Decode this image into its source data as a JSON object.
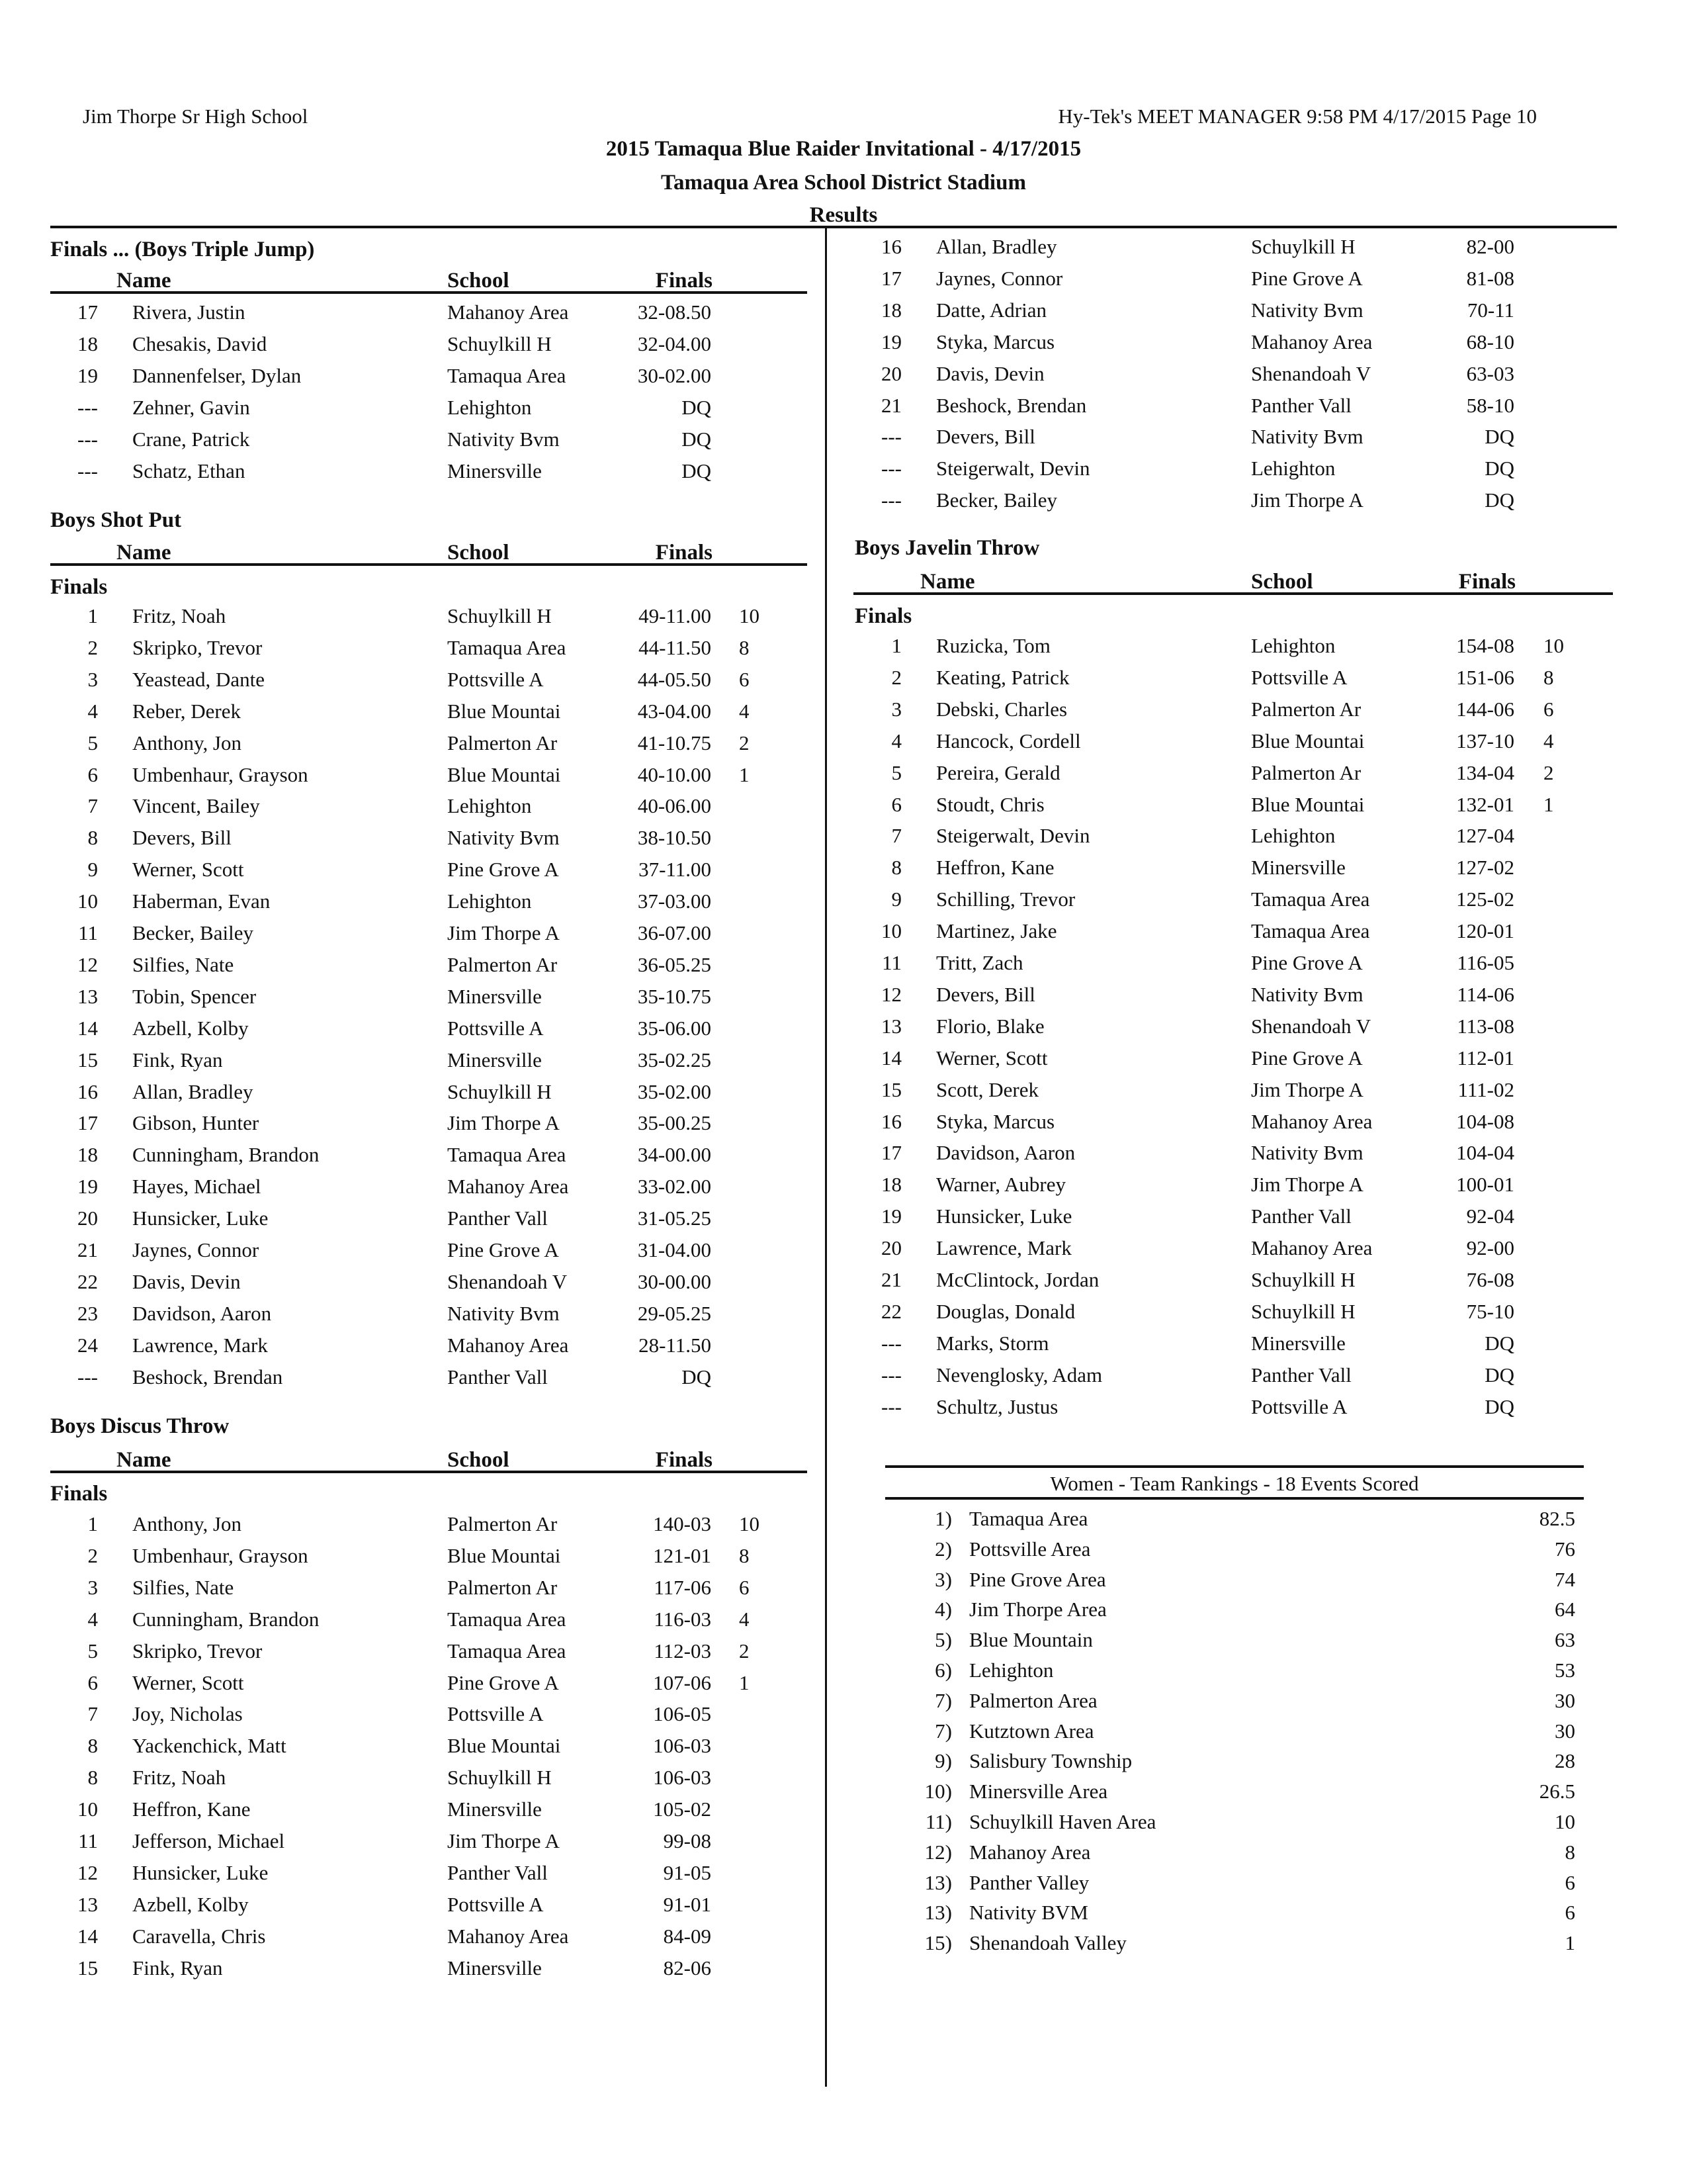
{
  "page_header": {
    "school": "Jim Thorpe Sr High School",
    "software": "Hy-Tek's MEET MANAGER  9:58 PM  4/17/2015  Page 10",
    "meet_title": "2015 Tamaqua Blue Raider Invitational - 4/17/2015",
    "venue": "Tamaqua Area School District Stadium",
    "results_label": "Results"
  },
  "columns": {
    "name": "Name",
    "school": "School",
    "finals": "Finals"
  },
  "triple_jump": {
    "title": "Finals ...  (Boys Triple Jump)",
    "entries": [
      {
        "place": "17",
        "name": "Rivera, Justin",
        "school": "Mahanoy Area",
        "mark": "32-08.50"
      },
      {
        "place": "18",
        "name": "Chesakis, David",
        "school": "Schuylkill H",
        "mark": "32-04.00"
      },
      {
        "place": "19",
        "name": "Dannenfelser, Dylan",
        "school": "Tamaqua Area",
        "mark": "30-02.00"
      },
      {
        "place": "---",
        "name": "Zehner, Gavin",
        "school": "Lehighton",
        "mark": "DQ"
      },
      {
        "place": "---",
        "name": "Crane, Patrick",
        "school": "Nativity Bvm",
        "mark": "DQ"
      },
      {
        "place": "---",
        "name": "Schatz, Ethan",
        "school": "Minersville",
        "mark": "DQ"
      }
    ]
  },
  "shot_put": {
    "title": "Boys Shot Put",
    "round": "Finals",
    "entries": [
      {
        "place": "1",
        "name": "Fritz, Noah",
        "school": "Schuylkill H",
        "mark": "49-11.00",
        "points": "10"
      },
      {
        "place": "2",
        "name": "Skripko, Trevor",
        "school": "Tamaqua Area",
        "mark": "44-11.50",
        "points": "8"
      },
      {
        "place": "3",
        "name": "Yeastead, Dante",
        "school": "Pottsville A",
        "mark": "44-05.50",
        "points": "6"
      },
      {
        "place": "4",
        "name": "Reber, Derek",
        "school": "Blue Mountai",
        "mark": "43-04.00",
        "points": "4"
      },
      {
        "place": "5",
        "name": "Anthony, Jon",
        "school": "Palmerton Ar",
        "mark": "41-10.75",
        "points": "2"
      },
      {
        "place": "6",
        "name": "Umbenhaur, Grayson",
        "school": "Blue Mountai",
        "mark": "40-10.00",
        "points": "1"
      },
      {
        "place": "7",
        "name": "Vincent, Bailey",
        "school": "Lehighton",
        "mark": "40-06.00"
      },
      {
        "place": "8",
        "name": "Devers, Bill",
        "school": "Nativity Bvm",
        "mark": "38-10.50"
      },
      {
        "place": "9",
        "name": "Werner, Scott",
        "school": "Pine Grove A",
        "mark": "37-11.00"
      },
      {
        "place": "10",
        "name": "Haberman, Evan",
        "school": "Lehighton",
        "mark": "37-03.00"
      },
      {
        "place": "11",
        "name": "Becker, Bailey",
        "school": "Jim Thorpe A",
        "mark": "36-07.00"
      },
      {
        "place": "12",
        "name": "Silfies, Nate",
        "school": "Palmerton Ar",
        "mark": "36-05.25"
      },
      {
        "place": "13",
        "name": "Tobin, Spencer",
        "school": "Minersville",
        "mark": "35-10.75"
      },
      {
        "place": "14",
        "name": "Azbell, Kolby",
        "school": "Pottsville A",
        "mark": "35-06.00"
      },
      {
        "place": "15",
        "name": "Fink, Ryan",
        "school": "Minersville",
        "mark": "35-02.25"
      },
      {
        "place": "16",
        "name": "Allan, Bradley",
        "school": "Schuylkill H",
        "mark": "35-02.00"
      },
      {
        "place": "17",
        "name": "Gibson, Hunter",
        "school": "Jim Thorpe A",
        "mark": "35-00.25"
      },
      {
        "place": "18",
        "name": "Cunningham, Brandon",
        "school": "Tamaqua Area",
        "mark": "34-00.00"
      },
      {
        "place": "19",
        "name": "Hayes, Michael",
        "school": "Mahanoy Area",
        "mark": "33-02.00"
      },
      {
        "place": "20",
        "name": "Hunsicker, Luke",
        "school": "Panther Vall",
        "mark": "31-05.25"
      },
      {
        "place": "21",
        "name": "Jaynes, Connor",
        "school": "Pine Grove A",
        "mark": "31-04.00"
      },
      {
        "place": "22",
        "name": "Davis, Devin",
        "school": "Shenandoah V",
        "mark": "30-00.00"
      },
      {
        "place": "23",
        "name": "Davidson, Aaron",
        "school": "Nativity Bvm",
        "mark": "29-05.25"
      },
      {
        "place": "24",
        "name": "Lawrence, Mark",
        "school": "Mahanoy Area",
        "mark": "28-11.50"
      },
      {
        "place": "---",
        "name": "Beshock, Brendan",
        "school": "Panther Vall",
        "mark": "DQ"
      }
    ]
  },
  "discus": {
    "title": "Boys Discus Throw",
    "round": "Finals",
    "entries": [
      {
        "place": "1",
        "name": "Anthony, Jon",
        "school": "Palmerton Ar",
        "mark": "140-03",
        "points": "10"
      },
      {
        "place": "2",
        "name": "Umbenhaur, Grayson",
        "school": "Blue Mountai",
        "mark": "121-01",
        "points": "8"
      },
      {
        "place": "3",
        "name": "Silfies, Nate",
        "school": "Palmerton Ar",
        "mark": "117-06",
        "points": "6"
      },
      {
        "place": "4",
        "name": "Cunningham, Brandon",
        "school": "Tamaqua Area",
        "mark": "116-03",
        "points": "4"
      },
      {
        "place": "5",
        "name": "Skripko, Trevor",
        "school": "Tamaqua Area",
        "mark": "112-03",
        "points": "2"
      },
      {
        "place": "6",
        "name": "Werner, Scott",
        "school": "Pine Grove A",
        "mark": "107-06",
        "points": "1"
      },
      {
        "place": "7",
        "name": "Joy, Nicholas",
        "school": "Pottsville A",
        "mark": "106-05"
      },
      {
        "place": "8",
        "name": "Yackenchick, Matt",
        "school": "Blue Mountai",
        "mark": "106-03"
      },
      {
        "place": "8",
        "name": "Fritz, Noah",
        "school": "Schuylkill H",
        "mark": "106-03"
      },
      {
        "place": "10",
        "name": "Heffron, Kane",
        "school": "Minersville",
        "mark": "105-02"
      },
      {
        "place": "11",
        "name": "Jefferson, Michael",
        "school": "Jim Thorpe A",
        "mark": "99-08"
      },
      {
        "place": "12",
        "name": "Hunsicker, Luke",
        "school": "Panther Vall",
        "mark": "91-05"
      },
      {
        "place": "13",
        "name": "Azbell, Kolby",
        "school": "Pottsville A",
        "mark": "91-01"
      },
      {
        "place": "14",
        "name": "Caravella, Chris",
        "school": "Mahanoy Area",
        "mark": "84-09"
      },
      {
        "place": "15",
        "name": "Fink, Ryan",
        "school": "Minersville",
        "mark": "82-06"
      }
    ],
    "continued_entries": [
      {
        "place": "16",
        "name": "Allan, Bradley",
        "school": "Schuylkill H",
        "mark": "82-00"
      },
      {
        "place": "17",
        "name": "Jaynes, Connor",
        "school": "Pine Grove A",
        "mark": "81-08"
      },
      {
        "place": "18",
        "name": "Datte, Adrian",
        "school": "Nativity Bvm",
        "mark": "70-11"
      },
      {
        "place": "19",
        "name": "Styka, Marcus",
        "school": "Mahanoy Area",
        "mark": "68-10"
      },
      {
        "place": "20",
        "name": "Davis, Devin",
        "school": "Shenandoah V",
        "mark": "63-03"
      },
      {
        "place": "21",
        "name": "Beshock, Brendan",
        "school": "Panther Vall",
        "mark": "58-10"
      },
      {
        "place": "---",
        "name": "Devers, Bill",
        "school": "Nativity Bvm",
        "mark": "DQ"
      },
      {
        "place": "---",
        "name": "Steigerwalt, Devin",
        "school": "Lehighton",
        "mark": "DQ"
      },
      {
        "place": "---",
        "name": "Becker, Bailey",
        "school": "Jim Thorpe A",
        "mark": "DQ"
      }
    ]
  },
  "javelin": {
    "title": "Boys Javelin Throw",
    "round": "Finals",
    "entries": [
      {
        "place": "1",
        "name": "Ruzicka, Tom",
        "school": "Lehighton",
        "mark": "154-08",
        "points": "10"
      },
      {
        "place": "2",
        "name": "Keating, Patrick",
        "school": "Pottsville A",
        "mark": "151-06",
        "points": "8"
      },
      {
        "place": "3",
        "name": "Debski, Charles",
        "school": "Palmerton Ar",
        "mark": "144-06",
        "points": "6"
      },
      {
        "place": "4",
        "name": "Hancock, Cordell",
        "school": "Blue Mountai",
        "mark": "137-10",
        "points": "4"
      },
      {
        "place": "5",
        "name": "Pereira, Gerald",
        "school": "Palmerton Ar",
        "mark": "134-04",
        "points": "2"
      },
      {
        "place": "6",
        "name": "Stoudt, Chris",
        "school": "Blue Mountai",
        "mark": "132-01",
        "points": "1"
      },
      {
        "place": "7",
        "name": "Steigerwalt, Devin",
        "school": "Lehighton",
        "mark": "127-04"
      },
      {
        "place": "8",
        "name": "Heffron, Kane",
        "school": "Minersville",
        "mark": "127-02"
      },
      {
        "place": "9",
        "name": "Schilling, Trevor",
        "school": "Tamaqua Area",
        "mark": "125-02"
      },
      {
        "place": "10",
        "name": "Martinez, Jake",
        "school": "Tamaqua Area",
        "mark": "120-01"
      },
      {
        "place": "11",
        "name": "Tritt, Zach",
        "school": "Pine Grove A",
        "mark": "116-05"
      },
      {
        "place": "12",
        "name": "Devers, Bill",
        "school": "Nativity Bvm",
        "mark": "114-06"
      },
      {
        "place": "13",
        "name": "Florio, Blake",
        "school": "Shenandoah V",
        "mark": "113-08"
      },
      {
        "place": "14",
        "name": "Werner, Scott",
        "school": "Pine Grove A",
        "mark": "112-01"
      },
      {
        "place": "15",
        "name": "Scott, Derek",
        "school": "Jim Thorpe A",
        "mark": "111-02"
      },
      {
        "place": "16",
        "name": "Styka, Marcus",
        "school": "Mahanoy Area",
        "mark": "104-08"
      },
      {
        "place": "17",
        "name": "Davidson, Aaron",
        "school": "Nativity Bvm",
        "mark": "104-04"
      },
      {
        "place": "18",
        "name": "Warner, Aubrey",
        "school": "Jim Thorpe A",
        "mark": "100-01"
      },
      {
        "place": "19",
        "name": "Hunsicker, Luke",
        "school": "Panther Vall",
        "mark": "92-04"
      },
      {
        "place": "20",
        "name": "Lawrence, Mark",
        "school": "Mahanoy Area",
        "mark": "92-00"
      },
      {
        "place": "21",
        "name": "McClintock, Jordan",
        "school": "Schuylkill H",
        "mark": "76-08"
      },
      {
        "place": "22",
        "name": "Douglas, Donald",
        "school": "Schuylkill H",
        "mark": "75-10"
      },
      {
        "place": "---",
        "name": "Marks, Storm",
        "school": "Minersville",
        "mark": "DQ"
      },
      {
        "place": "---",
        "name": "Nevenglosky, Adam",
        "school": "Panther Vall",
        "mark": "DQ"
      },
      {
        "place": "---",
        "name": "Schultz, Justus",
        "school": "Pottsville A",
        "mark": "DQ"
      }
    ]
  },
  "team_rankings": {
    "title": "Women - Team Rankings - 18 Events Scored",
    "teams": [
      {
        "rank": "1)",
        "team": "Tamaqua Area",
        "score": "82.5"
      },
      {
        "rank": "2)",
        "team": "Pottsville Area",
        "score": "76"
      },
      {
        "rank": "3)",
        "team": "Pine Grove Area",
        "score": "74"
      },
      {
        "rank": "4)",
        "team": "Jim Thorpe Area",
        "score": "64"
      },
      {
        "rank": "5)",
        "team": "Blue Mountain",
        "score": "63"
      },
      {
        "rank": "6)",
        "team": "Lehighton",
        "score": "53"
      },
      {
        "rank": "7)",
        "team": "Palmerton Area",
        "score": "30"
      },
      {
        "rank": "7)",
        "team": "Kutztown Area",
        "score": "30"
      },
      {
        "rank": "9)",
        "team": "Salisbury Township",
        "score": "28"
      },
      {
        "rank": "10)",
        "team": "Minersville Area",
        "score": "26.5"
      },
      {
        "rank": "11)",
        "team": "Schuylkill Haven Area",
        "score": "10"
      },
      {
        "rank": "12)",
        "team": "Mahanoy Area",
        "score": "8"
      },
      {
        "rank": "13)",
        "team": "Panther Valley",
        "score": "6"
      },
      {
        "rank": "13)",
        "team": "Nativity BVM",
        "score": "6"
      },
      {
        "rank": "15)",
        "team": "Shenandoah Valley",
        "score": "1"
      }
    ]
  }
}
